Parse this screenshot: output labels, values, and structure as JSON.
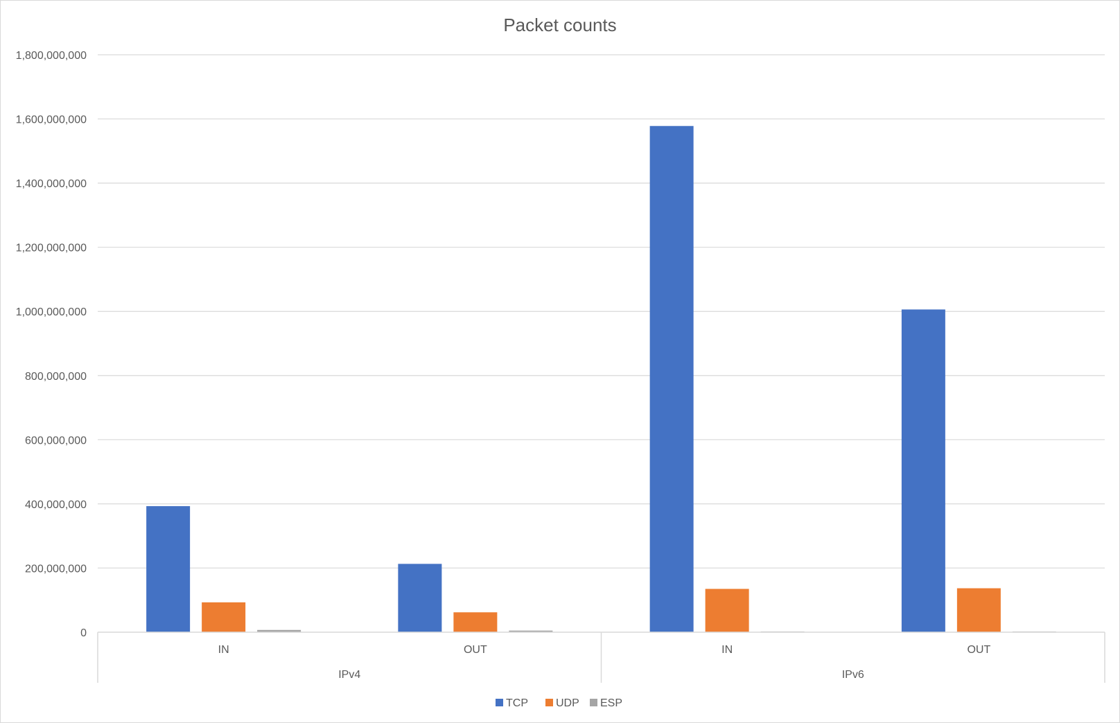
{
  "chart_data": {
    "type": "bar",
    "title": "Packet counts",
    "xlabel": "",
    "ylabel": "",
    "ylim": [
      0,
      1800000000
    ],
    "y_ticks": [
      "0",
      "200,000,000",
      "400,000,000",
      "600,000,000",
      "800,000,000",
      "1,000,000,000",
      "1,200,000,000",
      "1,400,000,000",
      "1,600,000,000",
      "1,800,000,000"
    ],
    "categories": [
      "IN",
      "OUT",
      "IN",
      "OUT"
    ],
    "groups": [
      {
        "label": "IPv4",
        "categories": [
          "IN",
          "OUT"
        ]
      },
      {
        "label": "IPv6",
        "categories": [
          "IN",
          "OUT"
        ]
      }
    ],
    "series": [
      {
        "name": "TCP",
        "color": "#4472C4",
        "values": [
          393000000,
          213000000,
          1578000000,
          1006000000
        ]
      },
      {
        "name": "UDP",
        "color": "#ED7D31",
        "values": [
          93000000,
          62000000,
          135000000,
          137000000
        ]
      },
      {
        "name": "ESP",
        "color": "#A5A5A5",
        "values": [
          7000000,
          5000000,
          1000000,
          1000000
        ]
      }
    ],
    "grid": true,
    "legend_position": "bottom"
  }
}
